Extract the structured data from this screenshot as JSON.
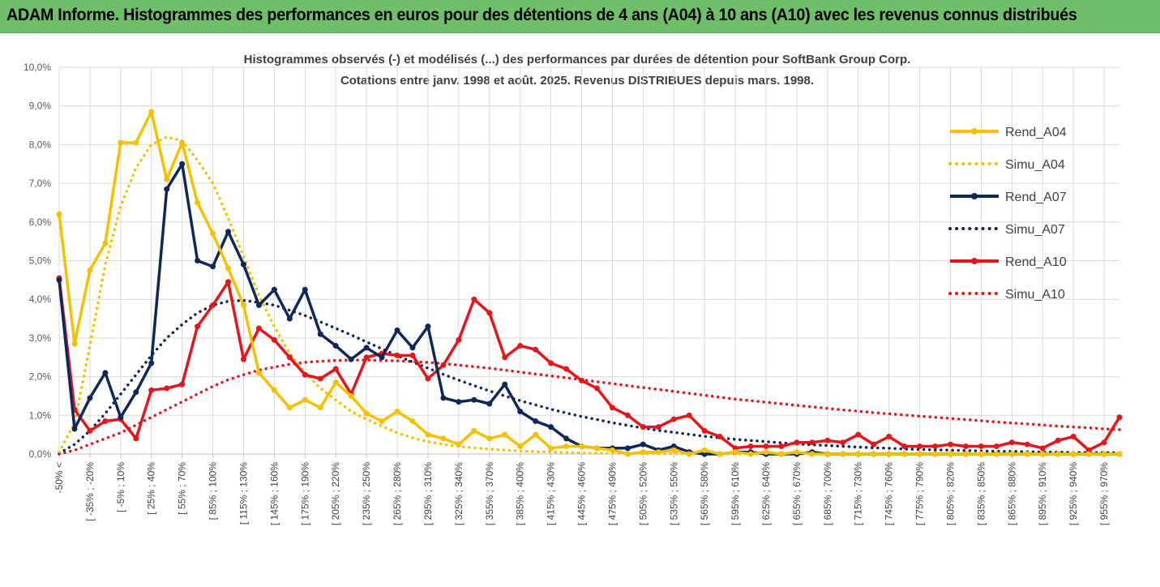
{
  "header": {
    "title": "ADAM Informe. Histogrammes des performances en euros pour des détentions de 4 ans (A04) à 10 ans (A10) avec les revenus connus distribués"
  },
  "chart_data": {
    "type": "line",
    "title": "Histogrammes observés (-) et modélisés (...) des performances par durées de détention pour SoftBank Group Corp.",
    "subtitle": "Cotations entre janv. 1998 et août. 2025. Revenus DISTRIBUES depuis mars. 1998.",
    "ylim": [
      0,
      10
    ],
    "y_ticks": [
      "0,0%",
      "1,0%",
      "2,0%",
      "3,0%",
      "4,0%",
      "5,0%",
      "6,0%",
      "7,0%",
      "8,0%",
      "9,0%",
      "10,0%"
    ],
    "x_tick_labels": [
      "-50% <",
      "[ -35% ; -20%",
      "[ -5% ; 10%",
      "[ 25% ; 40%",
      "[ 55% ; 70%",
      "[ 85% ; 100%",
      "[ 115% ; 130%",
      "[ 145% ; 160%",
      "[ 175% ; 190%",
      "[ 205% ; 220%",
      "[ 235% ; 250%",
      "[ 265% ; 280%",
      "[ 295% ; 310%",
      "[ 325% ; 340%",
      "[ 355% ; 370%",
      "[ 385% ; 400%",
      "[ 415% ; 430%",
      "[ 445% ; 460%",
      "[ 475% ; 490%",
      "[ 505% ; 520%",
      "[ 535% ; 550%",
      "[ 565% ; 580%",
      "[ 595% ; 610%",
      "[ 625% ; 640%",
      "[ 655% ; 670%",
      "[ 685% ; 700%",
      "[ 715% ; 730%",
      "[ 745% ; 760%",
      "[ 775% ; 790%",
      "[ 805% ; 820%",
      "[ 835% ; 850%",
      "[ 865% ; 880%",
      "[ 895% ; 910%",
      "[ 925% ; 940%",
      "[ 955% ; 970%"
    ],
    "n_points": 70,
    "grid": true,
    "legend_position": "right",
    "series": [
      {
        "name": "Rend_A04",
        "style": "solid",
        "color": "#f5c000",
        "values": [
          6.2,
          2.85,
          4.75,
          5.45,
          8.05,
          8.05,
          8.85,
          7.1,
          8.05,
          6.5,
          5.7,
          4.8,
          3.85,
          2.1,
          1.65,
          1.2,
          1.4,
          1.2,
          1.85,
          1.5,
          1.05,
          0.85,
          1.1,
          0.85,
          0.5,
          0.4,
          0.25,
          0.6,
          0.4,
          0.5,
          0.2,
          0.5,
          0.15,
          0.2,
          0.2,
          0.15,
          0.1,
          0.0,
          0.05,
          0.05,
          0.1,
          0.0,
          0.1,
          0.0,
          0.05,
          0.0,
          0.05,
          0.0,
          0.05,
          0,
          0,
          0,
          0,
          0,
          0,
          0,
          0,
          0,
          0,
          0,
          0,
          0,
          0,
          0,
          0,
          0,
          0,
          0,
          0,
          0
        ]
      },
      {
        "name": "Simu_A04",
        "style": "dotted",
        "color": "#f5c000",
        "values": [
          0.05,
          0.8,
          2.8,
          4.9,
          6.4,
          7.4,
          8.0,
          8.2,
          8.1,
          7.6,
          7.0,
          6.1,
          5.1,
          4.1,
          3.3,
          2.6,
          2.1,
          1.7,
          1.4,
          1.1,
          0.9,
          0.72,
          0.55,
          0.42,
          0.32,
          0.25,
          0.2,
          0.16,
          0.13,
          0.1,
          0.08,
          0.06,
          0.05,
          0.04,
          0.03,
          0.02,
          0.02,
          0.015,
          0.01,
          0.01,
          0.01,
          0.01,
          0,
          0,
          0,
          0,
          0,
          0,
          0,
          0,
          0,
          0,
          0,
          0,
          0,
          0,
          0,
          0,
          0,
          0,
          0,
          0,
          0,
          0,
          0,
          0,
          0,
          0,
          0,
          0
        ]
      },
      {
        "name": "Rend_A07",
        "style": "solid",
        "color": "#10275a",
        "values": [
          4.5,
          0.65,
          1.45,
          2.1,
          0.95,
          1.6,
          2.35,
          6.85,
          7.5,
          5.0,
          4.85,
          5.75,
          4.9,
          3.85,
          4.25,
          3.5,
          4.25,
          3.1,
          2.8,
          2.45,
          2.75,
          2.5,
          3.2,
          2.75,
          3.3,
          1.45,
          1.35,
          1.4,
          1.3,
          1.8,
          1.1,
          0.85,
          0.7,
          0.4,
          0.2,
          0.15,
          0.15,
          0.15,
          0.25,
          0.1,
          0.2,
          0.05,
          0.0,
          0.0,
          0.05,
          0.05,
          0.0,
          0.0,
          0.0,
          0.05,
          0,
          0,
          0,
          0,
          0,
          0,
          0,
          0,
          0,
          0,
          0,
          0,
          0,
          0,
          0,
          0,
          0,
          0,
          0,
          0
        ]
      },
      {
        "name": "Simu_A07",
        "style": "dotted",
        "color": "#10275a",
        "values": [
          0.02,
          0.25,
          0.6,
          1.05,
          1.55,
          2.05,
          2.55,
          3.0,
          3.35,
          3.65,
          3.85,
          3.95,
          3.97,
          3.92,
          3.85,
          3.72,
          3.58,
          3.42,
          3.25,
          3.08,
          2.9,
          2.72,
          2.55,
          2.38,
          2.22,
          2.06,
          1.91,
          1.77,
          1.63,
          1.5,
          1.38,
          1.27,
          1.16,
          1.06,
          0.97,
          0.89,
          0.81,
          0.74,
          0.67,
          0.61,
          0.56,
          0.51,
          0.46,
          0.42,
          0.38,
          0.35,
          0.32,
          0.29,
          0.26,
          0.24,
          0.22,
          0.2,
          0.18,
          0.16,
          0.15,
          0.13,
          0.12,
          0.11,
          0.1,
          0.09,
          0.08,
          0.07,
          0.07,
          0.06,
          0.05,
          0.05,
          0.04,
          0.04,
          0.04,
          0.03
        ]
      },
      {
        "name": "Rend_A10",
        "style": "solid",
        "color": "#e8141b",
        "values": [
          4.55,
          1.15,
          0.6,
          0.85,
          0.9,
          0.4,
          1.65,
          1.7,
          1.8,
          3.3,
          3.85,
          4.45,
          2.45,
          3.25,
          2.95,
          2.5,
          2.05,
          1.95,
          2.2,
          1.55,
          2.5,
          2.6,
          2.55,
          2.55,
          1.95,
          2.3,
          2.95,
          4.0,
          3.65,
          2.5,
          2.8,
          2.7,
          2.35,
          2.2,
          1.9,
          1.7,
          1.2,
          1.0,
          0.7,
          0.7,
          0.9,
          1.0,
          0.6,
          0.45,
          0.15,
          0.2,
          0.2,
          0.2,
          0.3,
          0.3,
          0.35,
          0.3,
          0.5,
          0.25,
          0.45,
          0.2,
          0.2,
          0.2,
          0.25,
          0.2,
          0.2,
          0.2,
          0.3,
          0.25,
          0.15,
          0.35,
          0.45,
          0.1,
          0.3,
          0.95
        ]
      },
      {
        "name": "Simu_A10",
        "style": "dotted",
        "color": "#e8141b",
        "values": [
          0.0,
          0.1,
          0.25,
          0.4,
          0.55,
          0.75,
          0.95,
          1.15,
          1.35,
          1.55,
          1.75,
          1.92,
          2.05,
          2.17,
          2.25,
          2.32,
          2.37,
          2.4,
          2.42,
          2.43,
          2.43,
          2.42,
          2.41,
          2.39,
          2.37,
          2.34,
          2.3,
          2.26,
          2.22,
          2.17,
          2.12,
          2.07,
          2.02,
          1.97,
          1.92,
          1.87,
          1.82,
          1.77,
          1.72,
          1.67,
          1.62,
          1.57,
          1.52,
          1.47,
          1.42,
          1.38,
          1.34,
          1.3,
          1.26,
          1.22,
          1.18,
          1.14,
          1.11,
          1.07,
          1.04,
          1.01,
          0.98,
          0.95,
          0.92,
          0.89,
          0.86,
          0.83,
          0.8,
          0.78,
          0.75,
          0.72,
          0.7,
          0.68,
          0.65,
          0.63
        ]
      }
    ]
  }
}
